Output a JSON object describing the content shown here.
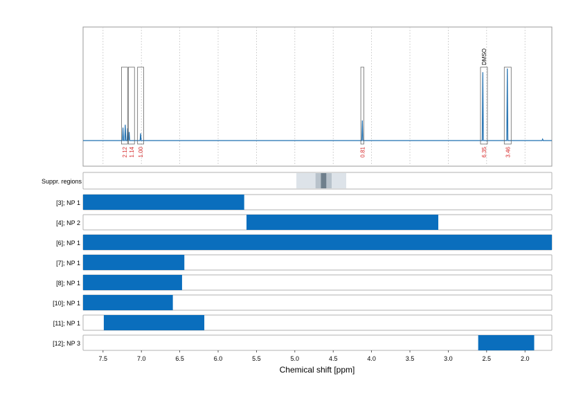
{
  "chart_data": {
    "type": "nmr_spectrum_with_regions",
    "xlabel": "Chemical shift [ppm]",
    "x_ticks": [
      7.5,
      7.0,
      6.5,
      6.0,
      5.5,
      5.0,
      4.5,
      4.0,
      3.5,
      3.0,
      2.5,
      2.0
    ],
    "xlim": [
      7.76,
      1.65
    ],
    "x_reversed": true,
    "grid": "vertical dashed",
    "colors": {
      "spectrum": "#1f6fb0",
      "bars": "#0a6ebd",
      "integral_labels": "#d62728",
      "box": "#666666"
    },
    "spectrum_peaks": [
      {
        "ppm": 7.24,
        "h": 0.18
      },
      {
        "ppm": 7.21,
        "h": 0.22
      },
      {
        "ppm": 7.18,
        "h": 0.17
      },
      {
        "ppm": 7.16,
        "h": 0.12
      },
      {
        "ppm": 7.01,
        "h": 0.1
      },
      {
        "ppm": 4.12,
        "h": 0.28
      },
      {
        "ppm": 2.55,
        "h": 0.95
      },
      {
        "ppm": 2.23,
        "h": 1.0
      },
      {
        "ppm": 1.77,
        "h": 0.02
      }
    ],
    "integrals": [
      {
        "ppm_left": 7.26,
        "ppm_right": 7.18,
        "label": "2.12"
      },
      {
        "ppm_left": 7.17,
        "ppm_right": 7.09,
        "label": "1.14"
      },
      {
        "ppm_left": 7.05,
        "ppm_right": 6.97,
        "label": "1.00"
      },
      {
        "ppm_left": 4.14,
        "ppm_right": 4.1,
        "label": "0.81"
      },
      {
        "ppm_left": 2.58,
        "ppm_right": 2.49,
        "label": "6.35",
        "annotation": "DMSO"
      },
      {
        "ppm_left": 2.27,
        "ppm_right": 2.18,
        "label": "3.46"
      }
    ],
    "suppression": {
      "label": "Suppr. regions",
      "bands": [
        {
          "from": 4.98,
          "to": 4.33,
          "level": 1
        },
        {
          "from": 4.73,
          "to": 4.52,
          "level": 2
        },
        {
          "from": 4.66,
          "to": 4.59,
          "level": 3
        }
      ]
    },
    "rows": [
      {
        "label": "[3]; NP 1",
        "from": 7.76,
        "to": 5.66
      },
      {
        "label": "[4]; NP 2",
        "from": 5.63,
        "to": 3.13
      },
      {
        "label": "[6]; NP 1",
        "from": 7.76,
        "to": 1.65
      },
      {
        "label": "[7]; NP 1",
        "from": 7.76,
        "to": 6.44
      },
      {
        "label": "[8]; NP 1",
        "from": 7.76,
        "to": 6.47
      },
      {
        "label": "[10]; NP 1",
        "from": 7.76,
        "to": 6.59
      },
      {
        "label": "[11]; NP 1",
        "from": 7.49,
        "to": 6.18
      },
      {
        "label": "[12]; NP 3",
        "from": 2.61,
        "to": 1.88
      }
    ]
  }
}
